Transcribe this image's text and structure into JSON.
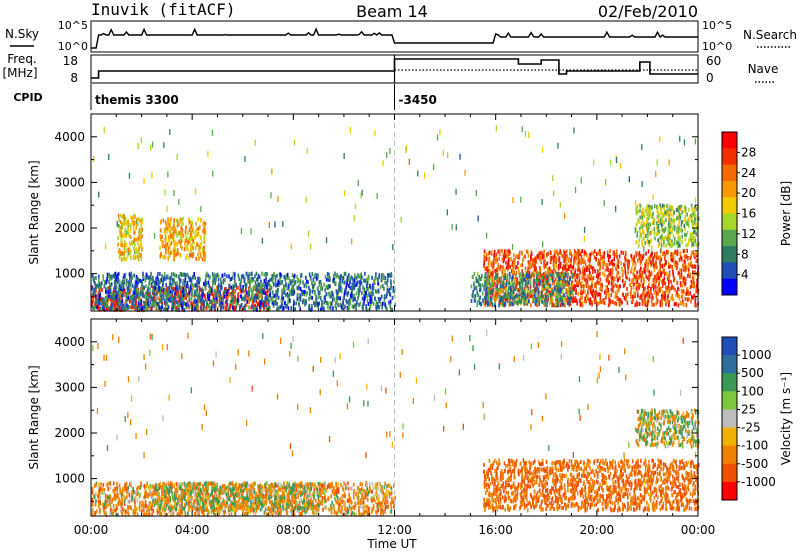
{
  "header": {
    "station": "Inuvik (fitACF)",
    "beam": "Beam 14",
    "date": "02/Feb/2010"
  },
  "top_panel": {
    "left_label": "N.Sky",
    "left_ticks": [
      "10^5",
      "10^0"
    ],
    "right_label": "N.Search",
    "right_ticks": [
      "10^5",
      "10^0"
    ]
  },
  "freq_panel": {
    "left_label_line1": "Freq.",
    "left_label_line2": "[MHz]",
    "left_ticks": [
      "18",
      "8"
    ],
    "right_label": "Nave",
    "right_ticks": [
      "60",
      "0"
    ]
  },
  "cpid": {
    "label": "CPID",
    "segments": [
      {
        "start_hour": 0.0,
        "text": "themis 3300"
      },
      {
        "start_hour": 12.0,
        "text": "-3450"
      }
    ]
  },
  "chart_data": [
    {
      "type": "heatmap",
      "title": "",
      "parameter": "Power",
      "ylabel": "Slant Range [km]",
      "xlabel": "",
      "xlim_hours": [
        0,
        24
      ],
      "ylim": [
        180,
        4500
      ],
      "yticks": [
        "1000",
        "2000",
        "3000",
        "4000"
      ],
      "colorbar": {
        "label": "Power [dB]",
        "ticks": [
          "4",
          "8",
          "12",
          "16",
          "20",
          "24",
          "28"
        ],
        "range": [
          0,
          32
        ],
        "colors": [
          "#0000ff",
          "#1f4fb4",
          "#2e7d63",
          "#5aa84e",
          "#a6d82a",
          "#f2cc00",
          "#f79a00",
          "#f46a00",
          "#f03000",
          "#ff0000"
        ]
      },
      "echo_regions": [
        {
          "t0": 0.0,
          "t1": 7.0,
          "r0": 200,
          "r1": 700,
          "level": 29
        },
        {
          "t0": 0.0,
          "t1": 12.0,
          "r0": 200,
          "r1": 1000,
          "level": 6
        },
        {
          "t0": 1.0,
          "t1": 2.0,
          "r0": 1300,
          "r1": 2300,
          "level": 18
        },
        {
          "t0": 2.7,
          "t1": 4.5,
          "r0": 1300,
          "r1": 2200,
          "level": 20
        },
        {
          "t0": 15.5,
          "t1": 24.0,
          "r0": 300,
          "r1": 1500,
          "level": 27
        },
        {
          "t0": 15.0,
          "t1": 19.0,
          "r0": 300,
          "r1": 1000,
          "level": 8
        },
        {
          "t0": 21.5,
          "t1": 24.0,
          "r0": 1600,
          "r1": 2500,
          "level": 14
        }
      ]
    },
    {
      "type": "heatmap",
      "title": "",
      "parameter": "Velocity",
      "ylabel": "Slant Range [km]",
      "xlabel": "Time UT",
      "xlim_hours": [
        0,
        24
      ],
      "ylim": [
        180,
        4500
      ],
      "yticks": [
        "1000",
        "2000",
        "3000",
        "4000"
      ],
      "xticks": [
        "00:00",
        "04:00",
        "08:00",
        "12:00",
        "16:00",
        "20:00",
        "00:00"
      ],
      "colorbar": {
        "label": "Velocity [m s⁻¹]",
        "ticks": [
          "1000",
          "500",
          "100",
          "25",
          "-25",
          "-100",
          "-500",
          "-1000"
        ],
        "colors": [
          "#1f4fb4",
          "#2e6f9e",
          "#3a9a55",
          "#7fc63f",
          "#bdbdbd",
          "#f2b000",
          "#f08000",
          "#f05000",
          "#ff0000"
        ]
      },
      "echo_regions": [
        {
          "t0": 0.0,
          "t1": 12.0,
          "r0": 200,
          "r1": 900,
          "velocity": -150
        },
        {
          "t0": 2.5,
          "t1": 9.0,
          "r0": 300,
          "r1": 900,
          "velocity": 0
        },
        {
          "t0": 15.5,
          "t1": 24.0,
          "r0": 300,
          "r1": 1400,
          "velocity": -300
        },
        {
          "t0": 21.5,
          "t1": 24.0,
          "r0": 1700,
          "r1": 2500,
          "velocity": 0
        }
      ]
    }
  ]
}
